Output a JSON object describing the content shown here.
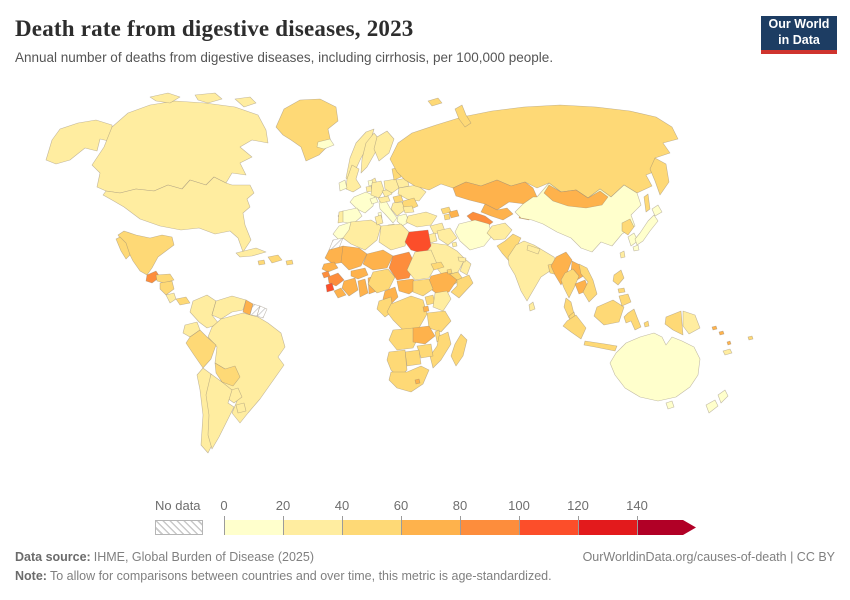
{
  "header": {
    "title": "Death rate from digestive diseases, 2023",
    "subtitle": "Annual number of deaths from digestive diseases, including cirrhosis, per 100,000 people.",
    "logo": {
      "line1": "Our World",
      "line2": "in Data",
      "bg_color": "#1d3d63",
      "accent_color": "#cf342e"
    }
  },
  "chart_data": {
    "type": "choropleth_map",
    "title": "Death rate from digestive diseases, 2023",
    "unit": "deaths per 100,000 people (age-standardized)",
    "year": "2023",
    "legend": {
      "no_data_label": "No data",
      "tick_labels": [
        "0",
        "20",
        "40",
        "60",
        "80",
        "100",
        "120",
        "140"
      ],
      "bin_edges": [
        0,
        20,
        40,
        60,
        80,
        100,
        120,
        140
      ],
      "colors": [
        "#ffffcc",
        "#ffeda0",
        "#fed976",
        "#feb24c",
        "#fd8d3c",
        "#fc4e2a",
        "#e31a1c",
        "#b10026"
      ],
      "open_ended_upper": true
    },
    "regions": {
      "alaska": 1,
      "canada": 1,
      "canada_arctic_1": 1,
      "canada_arctic_2": 1,
      "canada_arctic_3": 1,
      "usa": 1,
      "greenland": 2,
      "iceland": 0,
      "mexico": 2,
      "baja": 2,
      "guatemala": 4,
      "honduras": 2,
      "nicaragua": 2,
      "costa_rica": 1,
      "panama": 2,
      "cuba": 1,
      "hispaniola": 2,
      "jamaica": 2,
      "puerto_rico": 2,
      "colombia": 1,
      "venezuela": 1,
      "guyana": 3,
      "suriname": -1,
      "french_guiana": -1,
      "ecuador": 1,
      "peru": 2,
      "bolivia": 2,
      "brazil": 1,
      "paraguay": 1,
      "chile": 1,
      "argentina": 1,
      "uruguay": 1,
      "norway": 1,
      "sweden": 1,
      "finland": 1,
      "denmark": 1,
      "uk": 1,
      "ireland": 0,
      "france": 0,
      "spain": 0,
      "portugal": 1,
      "germany": 1,
      "netherlands": 0,
      "belgium": 1,
      "switzerland": 0,
      "italy": 0,
      "sicily": 0,
      "sardinia": 0,
      "czechia": 1,
      "austria": 1,
      "poland": 1,
      "baltics": 2,
      "belarus": 1,
      "ukraine": 1,
      "romania": 2,
      "hungary": 2,
      "balkans": 1,
      "bulgaria": 1,
      "greece": 0,
      "turkey": 1,
      "russia": 2,
      "kamchatka": 2,
      "sakhalin": 2,
      "svalbard": 2,
      "novaya_zemlya": 2,
      "kazakhstan": 3,
      "uzbekistan": 3,
      "turkmenistan": 4,
      "kyrgyzstan": 4,
      "tajikistan": 3,
      "georgia": 2,
      "azerbaijan": 3,
      "armenia": 2,
      "iran": 0,
      "afghanistan": 1,
      "pakistan": 2,
      "iraq": 1,
      "syria": 1,
      "jordan_israel": 1,
      "saudi_arabia": 1,
      "yemen": 2,
      "oman": 1,
      "uae_qatar": 1,
      "kuwait": 1,
      "morocco": 0,
      "western_sahara": -1,
      "algeria": 1,
      "tunisia": 1,
      "libya": 1,
      "egypt": 5,
      "mauritania": 3,
      "senegal": 3,
      "guinea_bissau": 4,
      "guinea": 4,
      "sierra_leone": 5,
      "liberia": 3,
      "mali": 3,
      "burkina_faso": 3,
      "cote_divoire": 3,
      "ghana": 3,
      "togo_benin": 3,
      "niger": 3,
      "nigeria": 2,
      "chad": 4,
      "sudan": 1,
      "eritrea": 2,
      "ethiopia": 3,
      "djibouti": 2,
      "somalia": 2,
      "cameroon": 3,
      "central_african_republic": 3,
      "south_sudan": 2,
      "drc": 2,
      "congo_gabon": 2,
      "uganda": 2,
      "kenya": 1,
      "tanzania": 2,
      "rwanda_burundi": 3,
      "angola": 2,
      "zambia": 3,
      "malawi": 2,
      "mozambique": 2,
      "zimbabwe": 2,
      "botswana": 2,
      "namibia": 2,
      "south_africa": 2,
      "lesotho": 3,
      "madagascar": 2,
      "china": 0,
      "mongolia": 3,
      "north_korea": 2,
      "south_korea": 0,
      "japan_hokkaido": 0,
      "japan_honshu": 0,
      "japan_kyushu": 0,
      "taiwan": 1,
      "india": 1,
      "nepal": 1,
      "bangladesh": 2,
      "sri_lanka": 1,
      "myanmar": 3,
      "thailand": 2,
      "thai_malay_peninsula": 2,
      "laos": 3,
      "cambodia": 3,
      "vietnam": 2,
      "malaysia": 2,
      "borneo": 2,
      "sumatra": 2,
      "java": 2,
      "sulawesi": 2,
      "lesser_sunda_1": 2,
      "lesser_sunda_2": 2,
      "maluku": 2,
      "papua_indonesia": 2,
      "papua_new_guinea": 1,
      "luzon": 2,
      "visayas": 2,
      "mindanao": 2,
      "solomon_1": 3,
      "solomon_2": 3,
      "vanuatu": 3,
      "new_caledonia": 1,
      "fiji": 2,
      "australia": 0,
      "tasmania": 0,
      "nz_north": 0,
      "nz_south": 0
    }
  },
  "footer": {
    "source_label": "Data source:",
    "source_value": "IHME, Global Burden of Disease (2025)",
    "note_label": "Note:",
    "note_value": "To allow for comparisons between countries and over time, this metric is age-standardized.",
    "credit": "OurWorldinData.org/causes-of-death | CC BY"
  }
}
